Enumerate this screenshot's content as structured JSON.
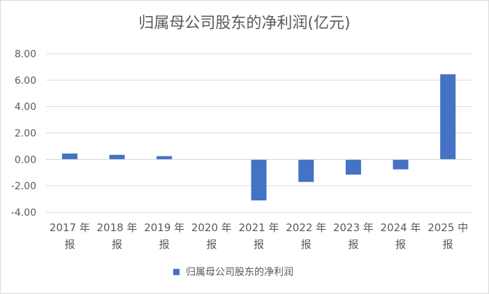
{
  "chart_data": {
    "type": "bar",
    "title": "归属母公司股东的净利润(亿元)",
    "categories": [
      [
        "2017 年",
        "报"
      ],
      [
        "2018 年",
        "报"
      ],
      [
        "2019 年",
        "报"
      ],
      [
        "2020 年",
        "报"
      ],
      [
        "2021 年",
        "报"
      ],
      [
        "2022 年",
        "报"
      ],
      [
        "2023 年",
        "报"
      ],
      [
        "2024 年",
        "报"
      ],
      [
        "2025 中",
        "报"
      ]
    ],
    "series": [
      {
        "name": "归属母公司股东的净利润",
        "values": [
          0.45,
          0.35,
          0.25,
          0.0,
          -3.1,
          -1.7,
          -1.15,
          -0.75,
          6.45
        ],
        "color": "#4472c4"
      }
    ],
    "yticks": [
      "8.00",
      "6.00",
      "4.00",
      "2.00",
      "0.00",
      "-2.00",
      "-4.00"
    ],
    "ylim": [
      -4,
      8
    ],
    "grid": true,
    "legend_position": "bottom"
  }
}
